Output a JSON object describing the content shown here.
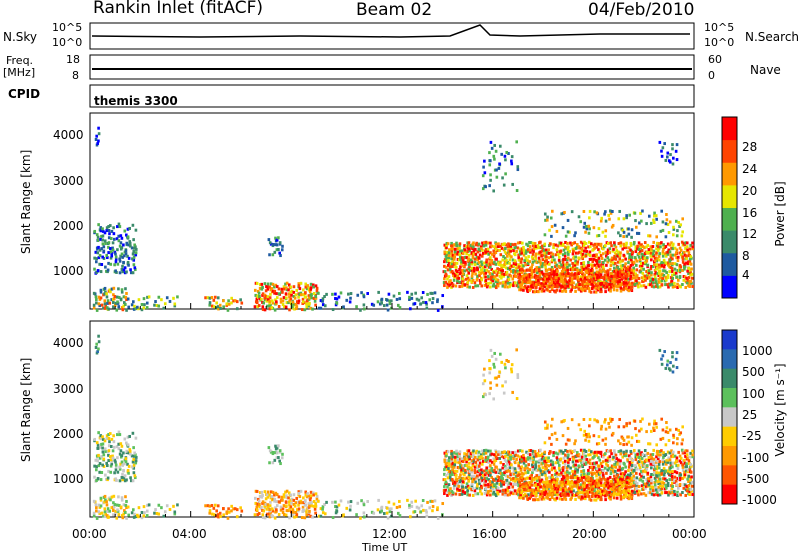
{
  "header": {
    "station": "Rankin Inlet (fitACF)",
    "beam": "Beam 02",
    "date": "04/Feb/2010"
  },
  "status_panels": {
    "nsky_label": "N.Sky",
    "nsky_ticks": [
      "10^5",
      "10^0"
    ],
    "nsearch_label": "N.Search",
    "nsearch_ticks": [
      "10^5",
      "10^0"
    ],
    "freq_label": "Freq.",
    "freq_unit": "[MHz]",
    "freq_ticks": [
      "18",
      "8"
    ],
    "nave_label": "Nave",
    "nave_ticks": [
      "60",
      "0"
    ],
    "cpid_label": "CPID",
    "cpid_value": "themis 3300"
  },
  "chart_data": [
    {
      "type": "heatmap",
      "panel": "power",
      "ylabel": "Slant Range [km]",
      "xlabel": "Time UT",
      "y_ticks": [
        "1000",
        "2000",
        "3000",
        "4000"
      ],
      "x_ticks": [
        "00:00",
        "04:00",
        "08:00",
        "12:00",
        "16:00",
        "20:00",
        "00:00"
      ],
      "ylim": [
        200,
        4500
      ],
      "xlim_hours": [
        0,
        24
      ],
      "colorbar_label": "Power [dB]",
      "colorbar_ticks": [
        "4",
        "8",
        "12",
        "16",
        "20",
        "24",
        "28"
      ],
      "colorscale": [
        "#0000ff",
        "#1e5aa0",
        "#3a8a6a",
        "#4fb04f",
        "#e6e600",
        "#ff9900",
        "#ff4400",
        "#ff0000"
      ]
    },
    {
      "type": "heatmap",
      "panel": "velocity",
      "ylabel": "Slant Range [km]",
      "xlabel": "Time UT",
      "y_ticks": [
        "1000",
        "2000",
        "3000",
        "4000"
      ],
      "x_ticks": [
        "00:00",
        "04:00",
        "08:00",
        "12:00",
        "16:00",
        "20:00",
        "00:00"
      ],
      "ylim": [
        200,
        4500
      ],
      "xlim_hours": [
        0,
        24
      ],
      "colorbar_label": "Velocity [m s⁻¹]",
      "colorbar_ticks": [
        "1000",
        "500",
        "100",
        "25",
        "-25",
        "-100",
        "-500",
        "-1000"
      ],
      "colorscale": [
        "#1a3acc",
        "#2a6ab0",
        "#3a8a6a",
        "#5cc05c",
        "#c8c8c8",
        "#ffcc00",
        "#ff9900",
        "#ff5500",
        "#ff0000"
      ]
    }
  ]
}
